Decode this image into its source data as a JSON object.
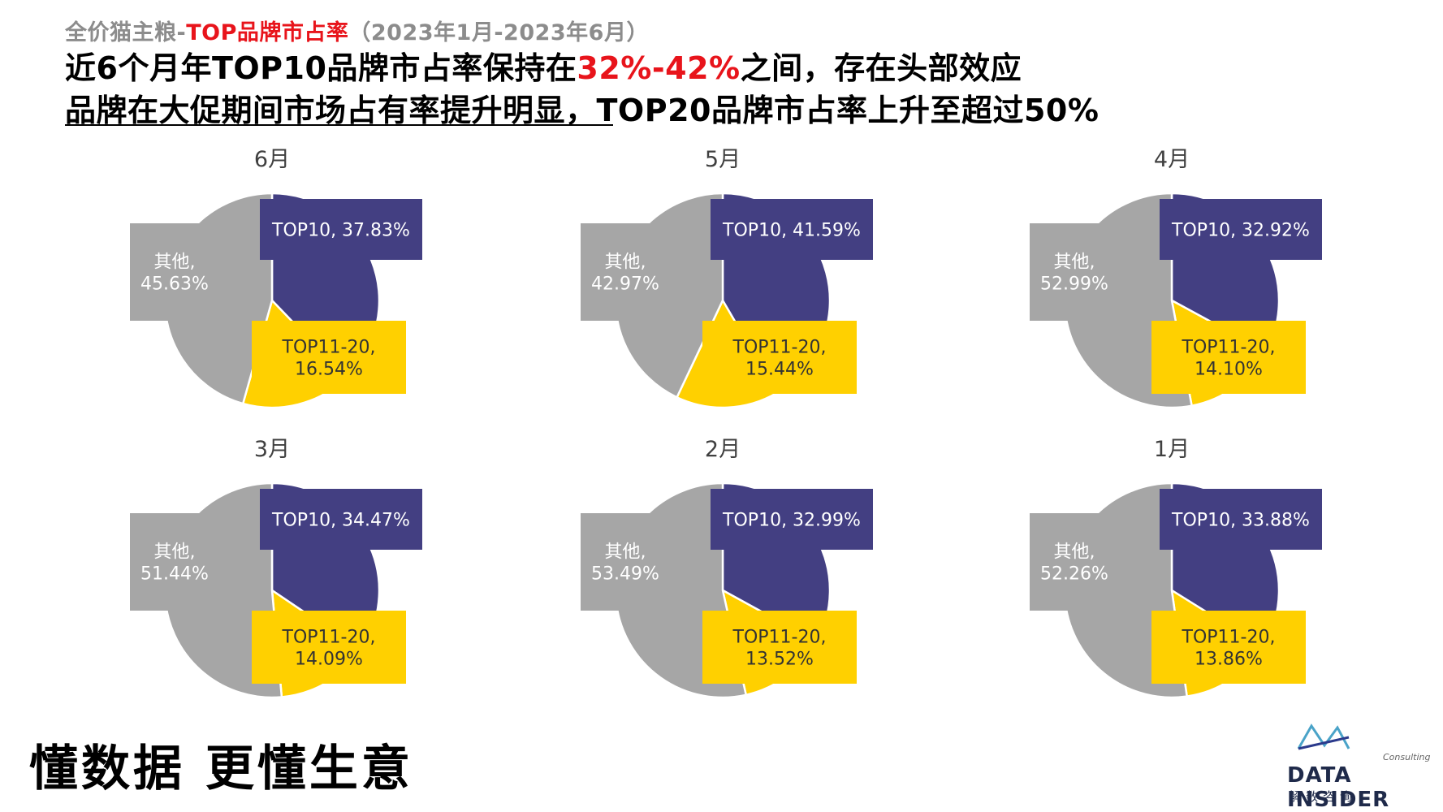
{
  "header": {
    "subtitle_prefix": "全价猫主粮-",
    "subtitle_highlight": "TOP品牌市占率",
    "subtitle_range": "（2023年1月-2023年6月）",
    "headline_line1_pre": "近6个月年TOP10品牌市占率保持在",
    "headline_line1_highlight": "32%-42%",
    "headline_line1_post": "之间，存在头部效应",
    "headline_line2": "品牌在大促期间市场占有率提升明显，TOP20品牌市占率上升至超过50%"
  },
  "colors": {
    "top10": "#433f82",
    "top11_20": "#ffd000",
    "other": "#a6a6a6",
    "highlight_red": "#e8141b",
    "label_text": "#ffffff",
    "label_text_dark": "#333333"
  },
  "chart_data": [
    {
      "type": "pie",
      "title": "6月",
      "slices": [
        {
          "label": "TOP10",
          "value": 37.83,
          "text": "TOP10, 37.83%"
        },
        {
          "label": "TOP11-20",
          "value": 16.54,
          "text": "TOP11-20, 16.54%"
        },
        {
          "label": "其他",
          "value": 45.63,
          "text": "其他, 45.63%"
        }
      ]
    },
    {
      "type": "pie",
      "title": "5月",
      "slices": [
        {
          "label": "TOP10",
          "value": 41.59,
          "text": "TOP10, 41.59%"
        },
        {
          "label": "TOP11-20",
          "value": 15.44,
          "text": "TOP11-20, 15.44%"
        },
        {
          "label": "其他",
          "value": 42.97,
          "text": "其他, 42.97%"
        }
      ]
    },
    {
      "type": "pie",
      "title": "4月",
      "slices": [
        {
          "label": "TOP10",
          "value": 32.92,
          "text": "TOP10, 32.92%"
        },
        {
          "label": "TOP11-20",
          "value": 14.1,
          "text": "TOP11-20, 14.10%"
        },
        {
          "label": "其他",
          "value": 52.99,
          "text": "其他, 52.99%"
        }
      ]
    },
    {
      "type": "pie",
      "title": "3月",
      "slices": [
        {
          "label": "TOP10",
          "value": 34.47,
          "text": "TOP10, 34.47%"
        },
        {
          "label": "TOP11-20",
          "value": 14.09,
          "text": "TOP11-20, 14.09%"
        },
        {
          "label": "其他",
          "value": 51.44,
          "text": "其他, 51.44%"
        }
      ]
    },
    {
      "type": "pie",
      "title": "2月",
      "slices": [
        {
          "label": "TOP10",
          "value": 32.99,
          "text": "TOP10, 32.99%"
        },
        {
          "label": "TOP11-20",
          "value": 13.52,
          "text": "TOP11-20, 13.52%"
        },
        {
          "label": "其他",
          "value": 53.49,
          "text": "其他, 53.49%"
        }
      ]
    },
    {
      "type": "pie",
      "title": "1月",
      "slices": [
        {
          "label": "TOP10",
          "value": 33.88,
          "text": "TOP10, 33.88%"
        },
        {
          "label": "TOP11-20",
          "value": 13.86,
          "text": "TOP11-20, 13.86%"
        },
        {
          "label": "其他",
          "value": 52.26,
          "text": "其他, 52.26%"
        }
      ]
    }
  ],
  "footer": {
    "slogan": "懂数据 更懂生意",
    "logo_consulting": "Consulting",
    "logo_name": "DATA INSIDER",
    "logo_cn": "解数咨询"
  }
}
